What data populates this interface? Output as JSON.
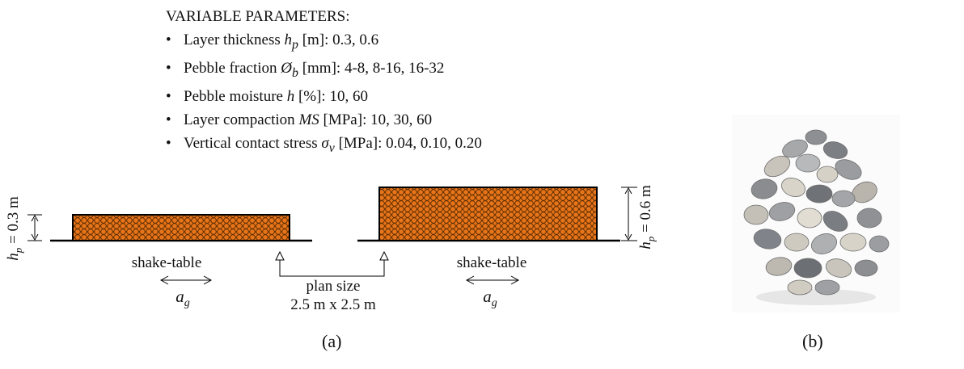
{
  "heading": "VARIABLE PARAMETERS:",
  "parameters": [
    {
      "pre": "Layer thickness ",
      "sym": "h",
      "sub": "p",
      "post": " [m]: 0.3, 0.6"
    },
    {
      "pre": "Pebble fraction ",
      "sym": "Ø",
      "sub": "b",
      "post": " [mm]: 4-8, 8-16, 16-32"
    },
    {
      "pre": "Pebble moisture ",
      "sym": "h",
      "sub": "",
      "post": " [%]: 10, 60"
    },
    {
      "pre": "Layer compaction ",
      "sym": "MS",
      "sub": "",
      "post": " [MPa]: 10, 30, 60"
    },
    {
      "pre": "Vertical contact stress ",
      "sym": "σ",
      "sub": "v",
      "post": " [MPa]: 0.04, 0.10, 0.20"
    }
  ],
  "diagram": {
    "left_height": {
      "sym": "h",
      "sub": "p",
      "rest": " = 0.3 m"
    },
    "right_height": {
      "sym": "h",
      "sub": "p",
      "rest": " = 0.6 m"
    },
    "shake_table_left": "shake-table",
    "shake_table_right": "shake-table",
    "accel_left": {
      "sym": "a",
      "sub": "g"
    },
    "accel_right": {
      "sym": "a",
      "sub": "g"
    },
    "plan_size_line1": "plan size",
    "plan_size_line2": "2.5 m x 2.5 m",
    "colors": {
      "pebble_fill": "#e8741a",
      "pebble_outline": "#5a2d00",
      "line": "#000000"
    }
  },
  "photo": {
    "subject": "pile of gray and beige river pebbles"
  },
  "labels": {
    "a": "(a)",
    "b": "(b)"
  }
}
